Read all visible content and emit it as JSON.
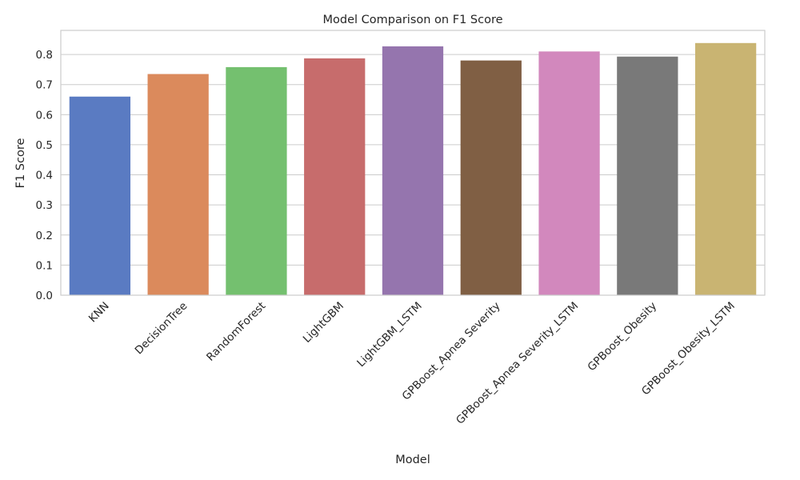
{
  "chart_data": {
    "type": "bar",
    "title": "Model Comparison on F1 Score",
    "xlabel": "Model",
    "ylabel": "F1 Score",
    "categories": [
      "KNN",
      "DecisionTree",
      "RandomForest",
      "LightGBM",
      "LightGBM_LSTM",
      "GPBoost_Apnea Severity",
      "GPBoost_Apnea Severity_LSTM",
      "GPBoost_Obesity",
      "GPBoost_Obesity_LSTM"
    ],
    "values": [
      0.66,
      0.735,
      0.758,
      0.787,
      0.827,
      0.78,
      0.81,
      0.793,
      0.838
    ],
    "colors": [
      "#5a7bc2",
      "#db8a5c",
      "#74c06f",
      "#c76c6c",
      "#9575ae",
      "#805f44",
      "#d288bd",
      "#797979",
      "#c9b472"
    ],
    "ylim": [
      0,
      0.88
    ],
    "yticks": [
      0.0,
      0.1,
      0.2,
      0.3,
      0.4,
      0.5,
      0.6,
      0.7,
      0.8
    ],
    "ytick_labels": [
      "0.0",
      "0.1",
      "0.2",
      "0.3",
      "0.4",
      "0.5",
      "0.6",
      "0.7",
      "0.8"
    ],
    "grid": true,
    "grid_axis": "y",
    "xtick_rotation": 45
  }
}
